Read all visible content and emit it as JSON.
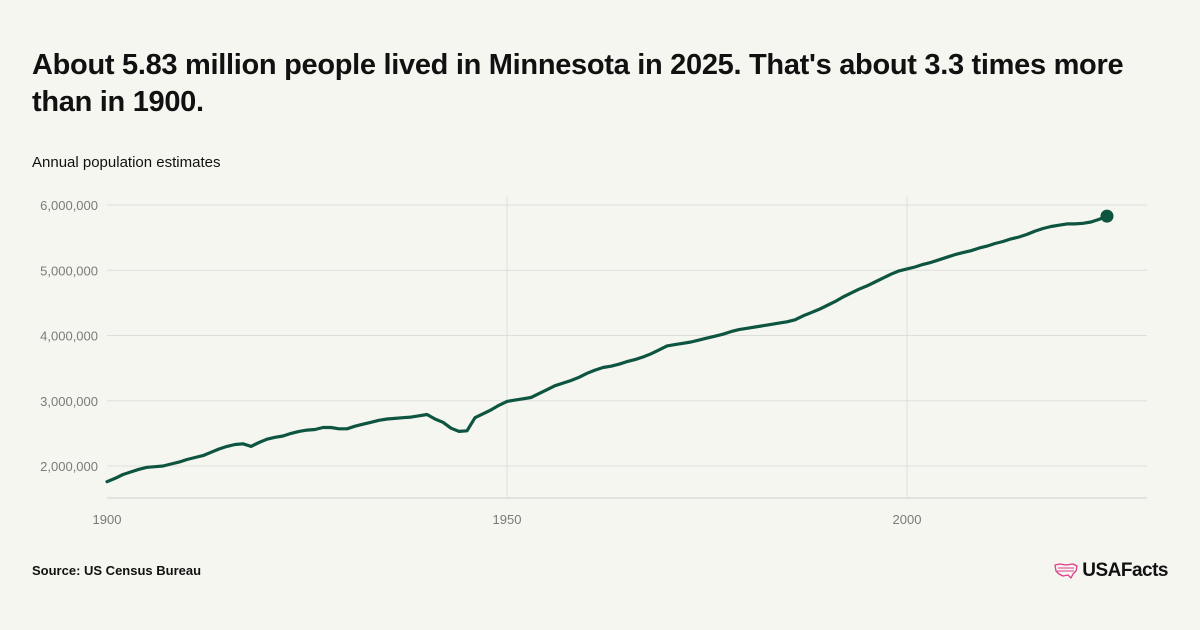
{
  "headline": "About 5.83 million people lived in Minnesota in 2025. That's about 3.3 times more than in 1900.",
  "subtitle": "Annual population estimates",
  "source": "Source: US Census Bureau",
  "brand": {
    "name": "USAFacts",
    "logo_icon": "us-map-icon",
    "logo_color": "#e03c8c"
  },
  "colors": {
    "background": "#f6f6f1",
    "line": "#0d5540",
    "grid": "#dddddd",
    "tick_text": "#7a7a7a"
  },
  "chart_data": {
    "type": "line",
    "title": "About 5.83 million people lived in Minnesota in 2025. That's about 3.3 times more than in 1900.",
    "subtitle": "Annual population estimates",
    "xlabel": "",
    "ylabel": "",
    "xlim": [
      1900,
      2030
    ],
    "ylim": [
      1500000,
      6000000
    ],
    "x_ticks": [
      1900,
      1950,
      2000
    ],
    "x_tick_labels": [
      "1900",
      "1950",
      "2000"
    ],
    "y_ticks": [
      2000000,
      3000000,
      4000000,
      5000000,
      6000000
    ],
    "y_tick_labels": [
      "2,000,000",
      "3,000,000",
      "4,000,000",
      "5,000,000",
      "6,000,000"
    ],
    "grid": true,
    "legend": "none",
    "end_marker": {
      "x": 2025,
      "y": 5830000
    },
    "series": [
      {
        "color": "#0d5540",
        "points": [
          [
            1900,
            1760000
          ],
          [
            1901,
            1810000
          ],
          [
            1902,
            1870000
          ],
          [
            1903,
            1910000
          ],
          [
            1904,
            1950000
          ],
          [
            1905,
            1980000
          ],
          [
            1906,
            1990000
          ],
          [
            1907,
            2000000
          ],
          [
            1908,
            2030000
          ],
          [
            1909,
            2060000
          ],
          [
            1910,
            2100000
          ],
          [
            1911,
            2130000
          ],
          [
            1912,
            2160000
          ],
          [
            1913,
            2210000
          ],
          [
            1914,
            2260000
          ],
          [
            1915,
            2300000
          ],
          [
            1916,
            2330000
          ],
          [
            1917,
            2340000
          ],
          [
            1918,
            2300000
          ],
          [
            1919,
            2360000
          ],
          [
            1920,
            2410000
          ],
          [
            1921,
            2440000
          ],
          [
            1922,
            2460000
          ],
          [
            1923,
            2500000
          ],
          [
            1924,
            2530000
          ],
          [
            1925,
            2550000
          ],
          [
            1926,
            2560000
          ],
          [
            1927,
            2590000
          ],
          [
            1928,
            2590000
          ],
          [
            1929,
            2570000
          ],
          [
            1930,
            2570000
          ],
          [
            1931,
            2610000
          ],
          [
            1932,
            2640000
          ],
          [
            1933,
            2670000
          ],
          [
            1934,
            2700000
          ],
          [
            1935,
            2720000
          ],
          [
            1936,
            2730000
          ],
          [
            1937,
            2740000
          ],
          [
            1938,
            2750000
          ],
          [
            1939,
            2770000
          ],
          [
            1940,
            2790000
          ],
          [
            1941,
            2720000
          ],
          [
            1942,
            2670000
          ],
          [
            1943,
            2580000
          ],
          [
            1944,
            2530000
          ],
          [
            1945,
            2540000
          ],
          [
            1946,
            2740000
          ],
          [
            1947,
            2800000
          ],
          [
            1948,
            2860000
          ],
          [
            1949,
            2930000
          ],
          [
            1950,
            2990000
          ],
          [
            1951,
            3010000
          ],
          [
            1952,
            3030000
          ],
          [
            1953,
            3050000
          ],
          [
            1954,
            3110000
          ],
          [
            1955,
            3170000
          ],
          [
            1956,
            3230000
          ],
          [
            1957,
            3270000
          ],
          [
            1958,
            3310000
          ],
          [
            1959,
            3360000
          ],
          [
            1960,
            3420000
          ],
          [
            1961,
            3470000
          ],
          [
            1962,
            3510000
          ],
          [
            1963,
            3530000
          ],
          [
            1964,
            3560000
          ],
          [
            1965,
            3600000
          ],
          [
            1966,
            3630000
          ],
          [
            1967,
            3670000
          ],
          [
            1968,
            3720000
          ],
          [
            1969,
            3780000
          ],
          [
            1970,
            3840000
          ],
          [
            1971,
            3860000
          ],
          [
            1972,
            3880000
          ],
          [
            1973,
            3900000
          ],
          [
            1974,
            3930000
          ],
          [
            1975,
            3960000
          ],
          [
            1976,
            3990000
          ],
          [
            1977,
            4020000
          ],
          [
            1978,
            4060000
          ],
          [
            1979,
            4090000
          ],
          [
            1980,
            4110000
          ],
          [
            1981,
            4130000
          ],
          [
            1982,
            4150000
          ],
          [
            1983,
            4170000
          ],
          [
            1984,
            4190000
          ],
          [
            1985,
            4210000
          ],
          [
            1986,
            4240000
          ],
          [
            1987,
            4300000
          ],
          [
            1988,
            4350000
          ],
          [
            1989,
            4400000
          ],
          [
            1990,
            4460000
          ],
          [
            1991,
            4520000
          ],
          [
            1992,
            4590000
          ],
          [
            1993,
            4650000
          ],
          [
            1994,
            4710000
          ],
          [
            1995,
            4760000
          ],
          [
            1996,
            4820000
          ],
          [
            1997,
            4880000
          ],
          [
            1998,
            4940000
          ],
          [
            1999,
            4990000
          ],
          [
            2000,
            5020000
          ],
          [
            2001,
            5050000
          ],
          [
            2002,
            5090000
          ],
          [
            2003,
            5120000
          ],
          [
            2004,
            5160000
          ],
          [
            2005,
            5200000
          ],
          [
            2006,
            5240000
          ],
          [
            2007,
            5270000
          ],
          [
            2008,
            5300000
          ],
          [
            2009,
            5340000
          ],
          [
            2010,
            5370000
          ],
          [
            2011,
            5410000
          ],
          [
            2012,
            5440000
          ],
          [
            2013,
            5480000
          ],
          [
            2014,
            5510000
          ],
          [
            2015,
            5550000
          ],
          [
            2016,
            5600000
          ],
          [
            2017,
            5640000
          ],
          [
            2018,
            5670000
          ],
          [
            2019,
            5690000
          ],
          [
            2020,
            5710000
          ],
          [
            2021,
            5710000
          ],
          [
            2022,
            5720000
          ],
          [
            2023,
            5740000
          ],
          [
            2024,
            5780000
          ],
          [
            2025,
            5830000
          ]
        ]
      }
    ]
  }
}
